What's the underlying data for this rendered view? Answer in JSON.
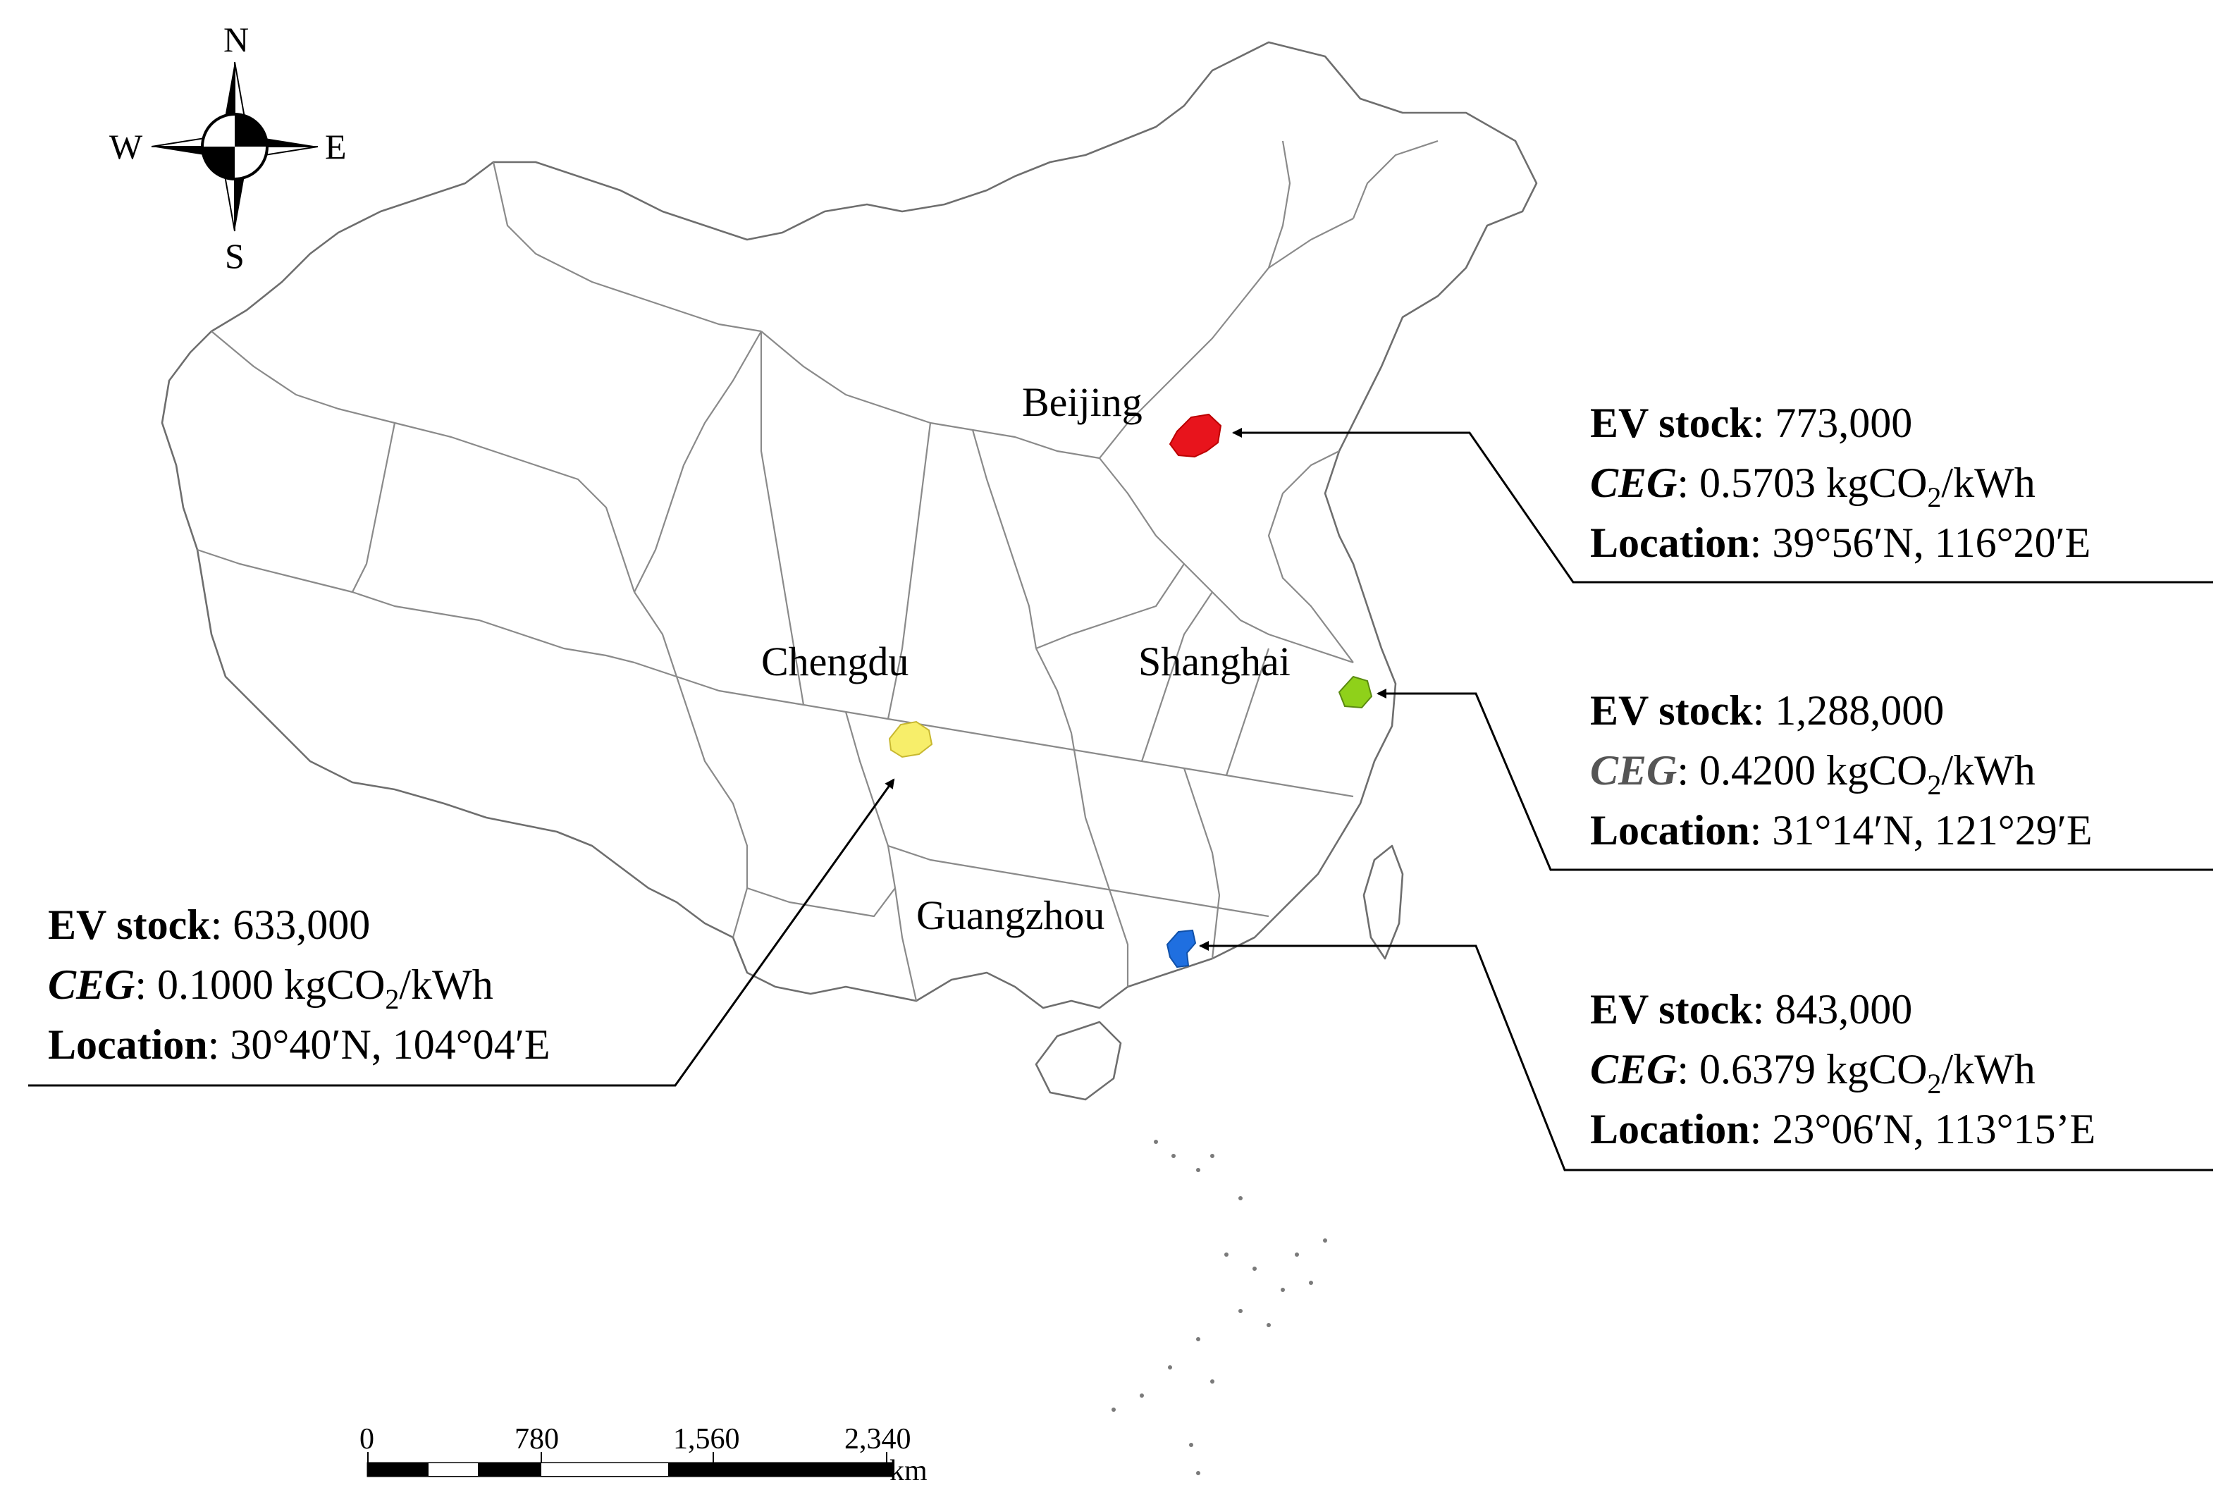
{
  "compass": {
    "north": "N",
    "south": "S",
    "east": "E",
    "west": "W"
  },
  "cities": [
    {
      "id": "beijing",
      "name": "Beijing",
      "color": "#e8141c",
      "ev_stock_label": "EV stock",
      "ev_stock_value": ": 773,000",
      "ceg_label": "CEG",
      "ceg_value": ": 0.5703 kgCO",
      "ceg_sub": "2",
      "ceg_unit": "/kWh",
      "location_label": "Location",
      "location_value": ": 39°56′N, 116°20′E"
    },
    {
      "id": "shanghai",
      "name": "Shanghai",
      "color": "#8fd11a",
      "ev_stock_label": "EV stock",
      "ev_stock_value": ": 1,288,000",
      "ceg_label": "CEG",
      "ceg_value": ": 0.4200 kgCO",
      "ceg_sub": "2",
      "ceg_unit": "/kWh",
      "location_label": "Location",
      "location_value": ": 31°14′N, 121°29′E"
    },
    {
      "id": "chengdu",
      "name": "Chengdu",
      "color": "#f7ee6a",
      "ev_stock_label": "EV stock",
      "ev_stock_value": ": 633,000",
      "ceg_label": "CEG",
      "ceg_value": ": 0.1000 kgCO",
      "ceg_sub": "2",
      "ceg_unit": "/kWh",
      "location_label": "Location",
      "location_value": ": 30°40′N, 104°04′E"
    },
    {
      "id": "guangzhou",
      "name": "Guangzhou",
      "color": "#1f6fe0",
      "ev_stock_label": "EV stock",
      "ev_stock_value": ": 843,000",
      "ceg_label": "CEG",
      "ceg_value": ": 0.6379 kgCO",
      "ceg_sub": "2",
      "ceg_unit": "/kWh",
      "location_label": "Location",
      "location_value": ": 23°06′N, 113°15’E"
    }
  ],
  "scale_bar": {
    "ticks": [
      "0",
      "780",
      "1,560",
      "2,340"
    ],
    "unit": "km"
  }
}
